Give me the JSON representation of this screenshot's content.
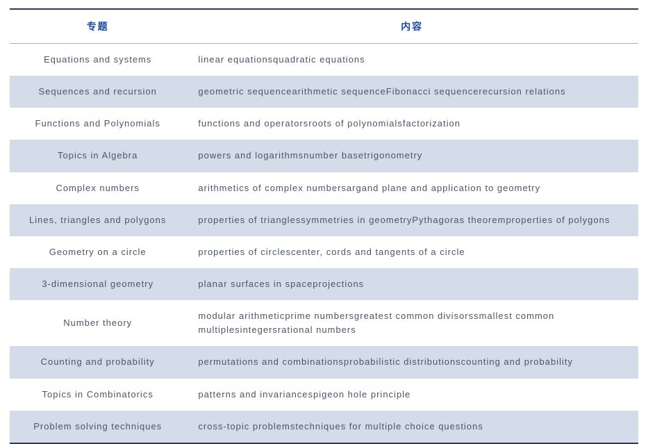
{
  "table": {
    "header_color": "#1a4aa3",
    "border_color": "#2b3a55",
    "stripe_even_bg": "#d5dce9",
    "stripe_odd_bg": "#ffffff",
    "text_color": "#4a5568",
    "header_fontsize": 14,
    "cell_fontsize": 13,
    "columns": [
      {
        "key": "topic",
        "label": "专题",
        "width_pct": 28,
        "align": "center"
      },
      {
        "key": "content",
        "label": "内容",
        "width_pct": 72,
        "align": "left"
      }
    ],
    "rows": [
      {
        "topic": "Equations and systems",
        "content": "linear equationsquadratic equations"
      },
      {
        "topic": "Sequences and recursion",
        "content": "geometric sequencearithmetic sequenceFibonacci sequencerecursion relations"
      },
      {
        "topic": "Functions and Polynomials",
        "content": "functions and operatorsroots of polynomialsfactorization"
      },
      {
        "topic": "Topics in Algebra",
        "content": "powers and logarithmsnumber basetrigonometry"
      },
      {
        "topic": "Complex numbers",
        "content": "arithmetics of complex numbersargand plane and application to geometry"
      },
      {
        "topic": "Lines, triangles and polygons",
        "content": "properties of trianglessymmetries in geometryPythagoras theoremproperties of polygons"
      },
      {
        "topic": "Geometry on a circle",
        "content": "properties of circlescenter, cords and tangents of a circle"
      },
      {
        "topic": "3-dimensional geometry",
        "content": "planar surfaces in spaceprojections"
      },
      {
        "topic": "Number theory",
        "content": "modular arithmeticprime numbersgreatest common divisorssmallest common multiplesintegersrational numbers"
      },
      {
        "topic": "Counting and probability",
        "content": "permutations and combinationsprobabilistic distributionscounting and probability"
      },
      {
        "topic": "Topics in Combinatorics",
        "content": "patterns and invariancespigeon hole principle"
      },
      {
        "topic": "Problem solving techniques",
        "content": "cross-topic problemstechniques for multiple choice questions"
      }
    ]
  }
}
